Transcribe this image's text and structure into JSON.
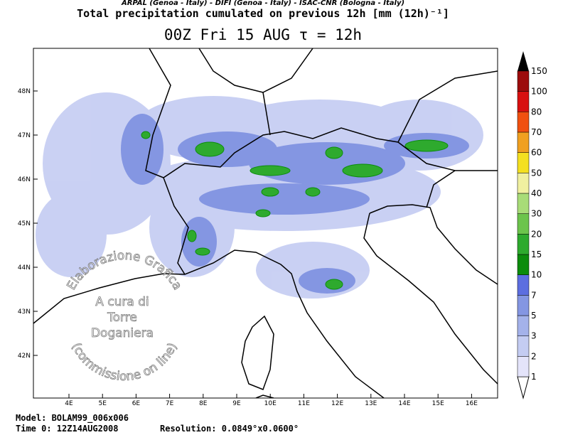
{
  "header": {
    "institutions": "ARPAL (Genoa - Italy)  -  DIFI (Genoa - Italy)  -  ISAC-CNR (Bologna - Italy)",
    "title": "Total precipitation cumulated on previous 12h [mm (12h)⁻¹]",
    "time": "00Z Fri 15 AUG  τ = 12h"
  },
  "map": {
    "lat_labels": [
      "48N",
      "47N",
      "46N",
      "45N",
      "44N",
      "43N",
      "42N"
    ],
    "lon_labels": [
      "4E",
      "5E",
      "6E",
      "7E",
      "8E",
      "9E",
      "10E",
      "11E",
      "12E",
      "13E",
      "14E",
      "15E",
      "16E"
    ]
  },
  "colorbar": {
    "levels": [
      1,
      2,
      3,
      5,
      7,
      10,
      15,
      20,
      30,
      40,
      50,
      60,
      70,
      80,
      100,
      150
    ],
    "colors": [
      "#e4e4fa",
      "#c4ccf2",
      "#a4b2ea",
      "#8496e2",
      "#5c6ee0",
      "#0c8c0c",
      "#2eaa2e",
      "#6cc44c",
      "#a8dc78",
      "#f0f0a0",
      "#f4e020",
      "#f0a020",
      "#f05010",
      "#d81010",
      "#9c0c0c"
    ]
  },
  "watermark": {
    "arc_top": "Elaborazione Grafica",
    "line1": "A cura di",
    "line2": "Torre",
    "line3": "Doganiera",
    "arc_bottom": "(commissione on line)"
  },
  "footer": {
    "model": "Model: BOLAM99_006x006",
    "time": "Time 0: 12Z14AUG2008",
    "resolution": "Resolution: 0.0849°x0.0600°"
  }
}
